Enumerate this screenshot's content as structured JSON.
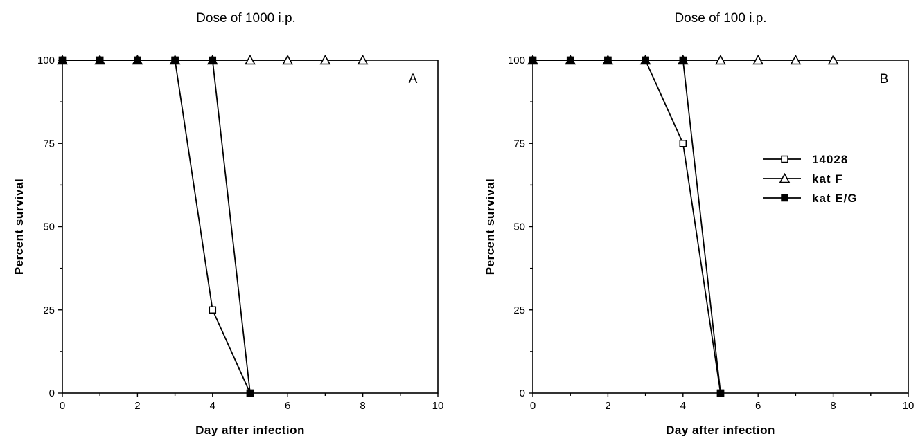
{
  "chart_data": [
    {
      "type": "line",
      "title": "Dose of 1000 i.p.",
      "panel_label": "A",
      "xlabel": "Day after infection",
      "ylabel": "Percent survival",
      "xlim": [
        0,
        10
      ],
      "ylim": [
        0,
        100
      ],
      "xticks": [
        "0",
        "2",
        "4",
        "6",
        "8",
        "10"
      ],
      "yticks": [
        "0",
        "25",
        "50",
        "75",
        "100"
      ],
      "legend": false,
      "series": [
        {
          "name": "14028",
          "marker": "open-square",
          "x": [
            0,
            1,
            2,
            3,
            4,
            5
          ],
          "y": [
            100,
            100,
            100,
            100,
            25,
            0
          ]
        },
        {
          "name": "kat F",
          "marker": "open-triangle",
          "x": [
            0,
            1,
            2,
            3,
            4,
            5,
            6,
            7,
            8
          ],
          "y": [
            100,
            100,
            100,
            100,
            100,
            100,
            100,
            100,
            100
          ]
        },
        {
          "name": "kat E/G",
          "marker": "filled-square",
          "x": [
            0,
            1,
            2,
            3,
            4,
            5
          ],
          "y": [
            100,
            100,
            100,
            100,
            100,
            0
          ]
        }
      ]
    },
    {
      "type": "line",
      "title": "Dose of 100 i.p.",
      "panel_label": "B",
      "xlabel": "Day after infection",
      "ylabel": "Percent survival",
      "xlim": [
        0,
        10
      ],
      "ylim": [
        0,
        100
      ],
      "xticks": [
        "0",
        "2",
        "4",
        "6",
        "8",
        "10"
      ],
      "yticks": [
        "0",
        "25",
        "50",
        "75",
        "100"
      ],
      "legend": true,
      "legend_position": "right",
      "series": [
        {
          "name": "14028",
          "marker": "open-square",
          "x": [
            0,
            1,
            2,
            3,
            4,
            5
          ],
          "y": [
            100,
            100,
            100,
            100,
            75,
            0
          ]
        },
        {
          "name": "kat F",
          "marker": "open-triangle",
          "x": [
            0,
            1,
            2,
            3,
            4,
            5,
            6,
            7,
            8
          ],
          "y": [
            100,
            100,
            100,
            100,
            100,
            100,
            100,
            100,
            100
          ]
        },
        {
          "name": "kat E/G",
          "marker": "filled-square",
          "x": [
            0,
            1,
            2,
            3,
            4,
            5
          ],
          "y": [
            100,
            100,
            100,
            100,
            100,
            0
          ]
        }
      ]
    }
  ],
  "colors": {
    "ink": "#000000",
    "background": "#ffffff"
  }
}
